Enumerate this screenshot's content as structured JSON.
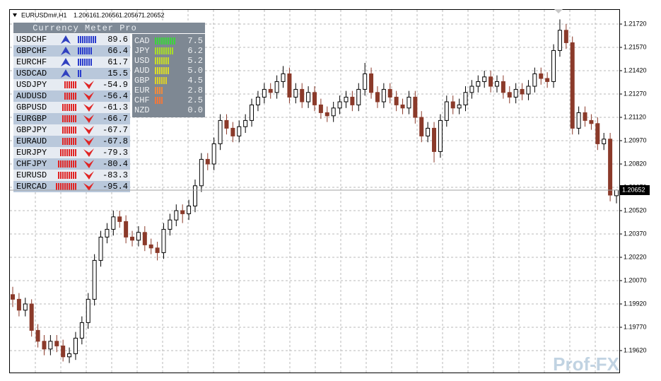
{
  "chart_data": {
    "type": "candlestick",
    "symbol": "EURUSDm#,H1",
    "ohlc": [
      1.20616,
      1.20656,
      1.20567,
      1.20652
    ],
    "current_price": 1.20652,
    "bull_color": "#000000",
    "bear_color": "#8b3a2a",
    "grid": true,
    "ylim": [
      1.19479,
      1.21811
    ],
    "yticks": [
      {
        "value": 1.2172,
        "label": "1.21720"
      },
      {
        "value": 1.2157,
        "label": "1.21570"
      },
      {
        "value": 1.2142,
        "label": "1.21420"
      },
      {
        "value": 1.2127,
        "label": "1.21270"
      },
      {
        "value": 1.2112,
        "label": "1.21120"
      },
      {
        "value": 1.2097,
        "label": "1.20970"
      },
      {
        "value": 1.2082,
        "label": "1.20820"
      },
      {
        "value": 1.2067,
        "label": "1.20670"
      },
      {
        "value": 1.2052,
        "label": "1.20520"
      },
      {
        "value": 1.2037,
        "label": "1.20370"
      },
      {
        "value": 1.2022,
        "label": "1.20220"
      },
      {
        "value": 1.2007,
        "label": "1.20070"
      },
      {
        "value": 1.1992,
        "label": "1.19920"
      },
      {
        "value": 1.1977,
        "label": "1.19770"
      },
      {
        "value": 1.1962,
        "label": "1.19620"
      }
    ],
    "candles": [
      [
        1.1998,
        1.2003,
        1.199,
        1.1995
      ],
      [
        1.1995,
        1.1999,
        1.1984,
        1.1988
      ],
      [
        1.1988,
        1.1996,
        1.1984,
        1.1992
      ],
      [
        1.1992,
        1.1995,
        1.1971,
        1.1975
      ],
      [
        1.1975,
        1.1979,
        1.1964,
        1.1968
      ],
      [
        1.1968,
        1.1972,
        1.1959,
        1.1963
      ],
      [
        1.1963,
        1.1972,
        1.1959,
        1.1968
      ],
      [
        1.1968,
        1.1972,
        1.1961,
        1.1965
      ],
      [
        1.1965,
        1.1969,
        1.1955,
        1.1958
      ],
      [
        1.1958,
        1.1964,
        1.1954,
        1.196
      ],
      [
        1.196,
        1.1974,
        1.1956,
        1.197
      ],
      [
        1.197,
        1.1984,
        1.1966,
        1.198
      ],
      [
        1.198,
        1.1999,
        1.1976,
        1.1995
      ],
      [
        1.1995,
        1.2024,
        1.1991,
        1.202
      ],
      [
        1.202,
        1.2039,
        1.2016,
        1.2035
      ],
      [
        1.2035,
        1.2044,
        1.2031,
        1.204
      ],
      [
        1.204,
        1.2052,
        1.2036,
        1.2048
      ],
      [
        1.2048,
        1.2052,
        1.2041,
        1.2045
      ],
      [
        1.2045,
        1.2049,
        1.2031,
        1.2035
      ],
      [
        1.2035,
        1.2039,
        1.2029,
        1.2033
      ],
      [
        1.2033,
        1.2042,
        1.2029,
        1.2038
      ],
      [
        1.2038,
        1.2042,
        1.2026,
        1.203
      ],
      [
        1.203,
        1.2034,
        1.2024,
        1.2028
      ],
      [
        1.2028,
        1.2032,
        1.202,
        1.2025
      ],
      [
        1.2025,
        1.2044,
        1.2021,
        1.204
      ],
      [
        1.204,
        1.205,
        1.2036,
        1.2046
      ],
      [
        1.2046,
        1.2056,
        1.2042,
        1.2052
      ],
      [
        1.2052,
        1.2056,
        1.2044,
        1.205
      ],
      [
        1.205,
        1.2059,
        1.2046,
        1.2055
      ],
      [
        1.2055,
        1.2072,
        1.2051,
        1.2068
      ],
      [
        1.2068,
        1.2089,
        1.2064,
        1.2085
      ],
      [
        1.2085,
        1.2089,
        1.2078,
        1.2082
      ],
      [
        1.2082,
        1.2099,
        1.2078,
        1.2095
      ],
      [
        1.2095,
        1.2114,
        1.2091,
        1.211
      ],
      [
        1.211,
        1.2114,
        1.2101,
        1.2105
      ],
      [
        1.2105,
        1.2109,
        1.2096,
        1.21
      ],
      [
        1.21,
        1.211,
        1.2096,
        1.2106
      ],
      [
        1.2106,
        1.2114,
        1.2102,
        1.211
      ],
      [
        1.211,
        1.2124,
        1.2106,
        1.212
      ],
      [
        1.212,
        1.2129,
        1.2116,
        1.2125
      ],
      [
        1.2125,
        1.2134,
        1.2121,
        1.213
      ],
      [
        1.213,
        1.2134,
        1.2124,
        1.2128
      ],
      [
        1.2128,
        1.2139,
        1.2124,
        1.2135
      ],
      [
        1.2135,
        1.2145,
        1.2131,
        1.214
      ],
      [
        1.214,
        1.2144,
        1.2121,
        1.2125
      ],
      [
        1.2125,
        1.2134,
        1.2121,
        1.213
      ],
      [
        1.213,
        1.2134,
        1.2118,
        1.2122
      ],
      [
        1.2122,
        1.2132,
        1.2118,
        1.2128
      ],
      [
        1.2128,
        1.2132,
        1.2116,
        1.212
      ],
      [
        1.212,
        1.2124,
        1.2111,
        1.2115
      ],
      [
        1.2115,
        1.2119,
        1.2109,
        1.2113
      ],
      [
        1.2113,
        1.2122,
        1.2109,
        1.2118
      ],
      [
        1.2118,
        1.2126,
        1.2114,
        1.2122
      ],
      [
        1.2122,
        1.2129,
        1.2118,
        1.2125
      ],
      [
        1.2125,
        1.2129,
        1.2116,
        1.212
      ],
      [
        1.212,
        1.2134,
        1.2116,
        1.213
      ],
      [
        1.213,
        1.2147,
        1.2126,
        1.214
      ],
      [
        1.214,
        1.2144,
        1.2124,
        1.2128
      ],
      [
        1.2128,
        1.2132,
        1.2118,
        1.2122
      ],
      [
        1.2122,
        1.2134,
        1.2118,
        1.213
      ],
      [
        1.213,
        1.2134,
        1.2121,
        1.2125
      ],
      [
        1.2125,
        1.2129,
        1.2116,
        1.212
      ],
      [
        1.212,
        1.2124,
        1.2114,
        1.2118
      ],
      [
        1.2118,
        1.2129,
        1.2114,
        1.2125
      ],
      [
        1.2125,
        1.2129,
        1.2108,
        1.2112
      ],
      [
        1.2112,
        1.2116,
        1.2096,
        1.21
      ],
      [
        1.21,
        1.2109,
        1.2096,
        1.2105
      ],
      [
        1.2105,
        1.2109,
        1.2083,
        1.209
      ],
      [
        1.209,
        1.2114,
        1.2086,
        1.211
      ],
      [
        1.211,
        1.2126,
        1.2106,
        1.2122
      ],
      [
        1.2122,
        1.2126,
        1.2114,
        1.2118
      ],
      [
        1.2118,
        1.2124,
        1.2114,
        1.212
      ],
      [
        1.212,
        1.2132,
        1.2116,
        1.2128
      ],
      [
        1.2128,
        1.2136,
        1.2124,
        1.2132
      ],
      [
        1.2132,
        1.2139,
        1.2128,
        1.2135
      ],
      [
        1.2135,
        1.2142,
        1.2131,
        1.2138
      ],
      [
        1.2138,
        1.2142,
        1.2128,
        1.2132
      ],
      [
        1.2132,
        1.2139,
        1.2128,
        1.2135
      ],
      [
        1.2135,
        1.2139,
        1.2124,
        1.2128
      ],
      [
        1.2128,
        1.2132,
        1.2121,
        1.2125
      ],
      [
        1.2125,
        1.2134,
        1.2121,
        1.213
      ],
      [
        1.213,
        1.2134,
        1.2123,
        1.2127
      ],
      [
        1.2127,
        1.2136,
        1.2123,
        1.2132
      ],
      [
        1.2132,
        1.2144,
        1.2128,
        1.214
      ],
      [
        1.214,
        1.2144,
        1.2133,
        1.2137
      ],
      [
        1.2137,
        1.2141,
        1.2131,
        1.2135
      ],
      [
        1.2135,
        1.2159,
        1.2131,
        1.2155
      ],
      [
        1.2155,
        1.2175,
        1.2151,
        1.2168
      ],
      [
        1.2168,
        1.2172,
        1.2156,
        1.216
      ],
      [
        1.216,
        1.2164,
        1.2101,
        1.2105
      ],
      [
        1.2105,
        1.2119,
        1.2101,
        1.2115
      ],
      [
        1.2115,
        1.2119,
        1.2106,
        1.211
      ],
      [
        1.211,
        1.2114,
        1.2104,
        1.2108
      ],
      [
        1.2108,
        1.2112,
        1.2091,
        1.2095
      ],
      [
        1.2095,
        1.2102,
        1.2091,
        1.2098
      ],
      [
        1.2098,
        1.2102,
        1.2058,
        1.2062
      ],
      [
        1.20616,
        1.20656,
        1.20567,
        1.20652
      ]
    ]
  },
  "meter": {
    "title": "Currency Meter Pro",
    "pairs": [
      {
        "name": "USDCHF",
        "value": 89.6
      },
      {
        "name": "GBPCHF",
        "value": 66.4
      },
      {
        "name": "EURCHF",
        "value": 61.7
      },
      {
        "name": "USDCAD",
        "value": 15.5
      },
      {
        "name": "USDJPY",
        "value": -54.9
      },
      {
        "name": "AUDUSD",
        "value": -56.4
      },
      {
        "name": "GBPUSD",
        "value": -61.3
      },
      {
        "name": "EURGBP",
        "value": -66.7
      },
      {
        "name": "GBPJPY",
        "value": -67.7
      },
      {
        "name": "EURAUD",
        "value": -67.8
      },
      {
        "name": "EURJPY",
        "value": -79.3
      },
      {
        "name": "CHFJPY",
        "value": -80.4
      },
      {
        "name": "EURUSD",
        "value": -83.3
      },
      {
        "name": "EURCAD",
        "value": -95.4
      }
    ],
    "strength": {
      "currencies": [
        "CAD",
        "JPY",
        "USD",
        "AUD",
        "GBP",
        "EUR",
        "CHF",
        "NZD"
      ],
      "values": [
        7.5,
        6.2,
        5.2,
        5,
        4.5,
        2.8,
        2.5,
        0
      ],
      "value_labels": [
        "7.5",
        "6.2",
        "5.2",
        "5.0",
        "4.5",
        "2.8",
        "2.5",
        "0.0"
      ],
      "colors": [
        "#3ed23e",
        "#a8dc2a",
        "#c8dc28",
        "#dcdc28",
        "#dcd028",
        "#f08a3c",
        "#f0783c",
        "#f0783c"
      ]
    }
  },
  "watermark": "Prof-FX"
}
